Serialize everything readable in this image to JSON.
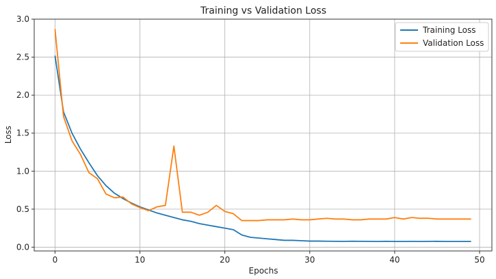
{
  "chart_data": {
    "type": "line",
    "title": "Training vs Validation Loss",
    "xlabel": "Epochs",
    "ylabel": "Loss",
    "xlim": [
      -2.45,
      51.45
    ],
    "ylim": [
      -0.05,
      3.0
    ],
    "xticks": [
      0,
      10,
      20,
      30,
      40,
      50
    ],
    "xtick_labels": [
      "0",
      "10",
      "20",
      "30",
      "40",
      "50"
    ],
    "yticks": [
      0.0,
      0.5,
      1.0,
      1.5,
      2.0,
      2.5,
      3.0
    ],
    "ytick_labels": [
      "0.0",
      "0.5",
      "1.0",
      "1.5",
      "2.0",
      "2.5",
      "3.0"
    ],
    "grid": true,
    "legend_position": "top-right",
    "x": [
      0,
      1,
      2,
      3,
      4,
      5,
      6,
      7,
      8,
      9,
      10,
      11,
      12,
      13,
      14,
      15,
      16,
      17,
      18,
      19,
      20,
      21,
      22,
      23,
      24,
      25,
      26,
      27,
      28,
      29,
      30,
      31,
      32,
      33,
      34,
      35,
      36,
      37,
      38,
      39,
      40,
      41,
      42,
      43,
      44,
      45,
      46,
      47,
      48,
      49
    ],
    "series": [
      {
        "name": "Training Loss",
        "color": "#1f77b4",
        "values": [
          2.52,
          1.78,
          1.5,
          1.29,
          1.11,
          0.94,
          0.81,
          0.71,
          0.64,
          0.58,
          0.53,
          0.49,
          0.45,
          0.42,
          0.39,
          0.36,
          0.34,
          0.31,
          0.29,
          0.27,
          0.25,
          0.23,
          0.16,
          0.13,
          0.12,
          0.11,
          0.1,
          0.09,
          0.09,
          0.085,
          0.08,
          0.08,
          0.078,
          0.077,
          0.076,
          0.078,
          0.077,
          0.076,
          0.075,
          0.077,
          0.075,
          0.075,
          0.076,
          0.075,
          0.076,
          0.077,
          0.075,
          0.075,
          0.075,
          0.075
        ]
      },
      {
        "name": "Validation Loss",
        "color": "#ff7f0e",
        "values": [
          2.87,
          1.72,
          1.4,
          1.22,
          0.98,
          0.9,
          0.7,
          0.65,
          0.66,
          0.57,
          0.52,
          0.48,
          0.53,
          0.55,
          1.33,
          0.46,
          0.46,
          0.42,
          0.46,
          0.55,
          0.47,
          0.44,
          0.35,
          0.35,
          0.35,
          0.36,
          0.36,
          0.36,
          0.37,
          0.36,
          0.36,
          0.37,
          0.38,
          0.37,
          0.37,
          0.36,
          0.36,
          0.37,
          0.37,
          0.37,
          0.39,
          0.37,
          0.39,
          0.38,
          0.38,
          0.37,
          0.37,
          0.37,
          0.37,
          0.37
        ]
      }
    ]
  }
}
